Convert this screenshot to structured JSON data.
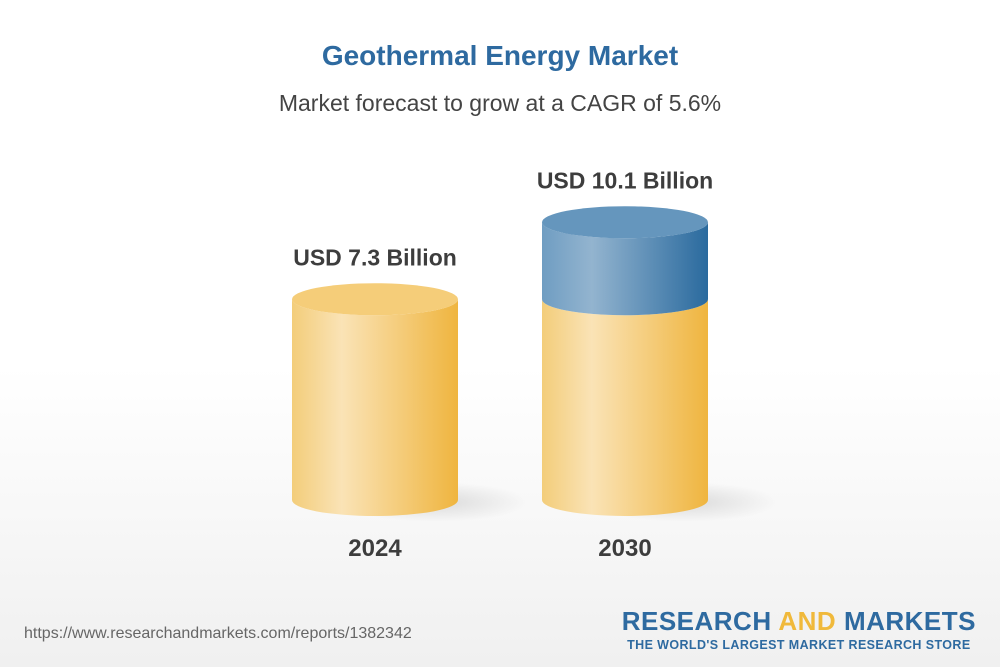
{
  "title": "Geothermal Energy Market",
  "subtitle": "Market forecast to grow at a CAGR of 5.6%",
  "chart_data": {
    "type": "bar",
    "style": "3d-cylinder",
    "categories": [
      "2024",
      "2030"
    ],
    "values": [
      7.3,
      10.1
    ],
    "value_labels": [
      "USD 7.3 Billion",
      "USD 10.1 Billion"
    ],
    "unit": "USD Billion",
    "colors": {
      "base": "#f0b93b",
      "growth": "#2e6aa0"
    }
  },
  "footer": {
    "url": "https://www.researchandmarkets.com/reports/1382342",
    "logo_word1": "RESEARCH ",
    "logo_word2": "AND",
    "logo_word3": " MARKETS",
    "logo_tagline": "THE WORLD'S LARGEST MARKET RESEARCH STORE"
  }
}
